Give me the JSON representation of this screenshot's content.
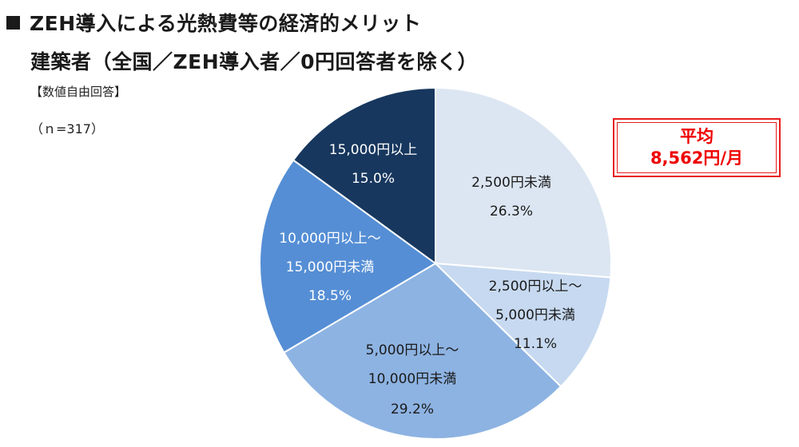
{
  "header": {
    "title": "ZEH導入による光熱費等の経済的メリット",
    "subtitle": "建築者（全国／ZEH導入者／0円回答者を除く）",
    "note": "【数値自由回答】",
    "sample": "（ｎ=317）"
  },
  "average": {
    "label": "平均",
    "value": "8,562円/月",
    "color": "#ee0000"
  },
  "chart_data": {
    "type": "pie",
    "title": "ZEH導入による光熱費等の経済的メリット",
    "subtitle": "建築者（全国／ZEH導入者／0円回答者を除く）",
    "n": 317,
    "categories": [
      "2,500円未満",
      "2,500円以上～5,000円未満",
      "5,000円以上～10,000円未満",
      "10,000円以上～15,000円未満",
      "15,000円以上"
    ],
    "values": [
      26.3,
      11.1,
      29.2,
      18.5,
      15.0
    ],
    "unit": "%",
    "colors": [
      "#dce6f2",
      "#c6d9f0",
      "#8db3e2",
      "#558ed5",
      "#17375e"
    ],
    "start_angle": "12 o'clock, clockwise",
    "annotation": "平均 8,562円/月",
    "legend": "none (data labels inside slices)"
  },
  "slices": [
    {
      "line1": "2,500円未満",
      "line2": "26.3%",
      "line3": ""
    },
    {
      "line1": "2,500円以上～",
      "line2": "5,000円未満",
      "line3": "11.1%"
    },
    {
      "line1": "5,000円以上～",
      "line2": "10,000円未満",
      "line3": "29.2%"
    },
    {
      "line1": "10,000円以上～",
      "line2": "15,000円未満",
      "line3": "18.5%"
    },
    {
      "line1": "15,000円以上",
      "line2": "15.0%",
      "line3": ""
    }
  ]
}
